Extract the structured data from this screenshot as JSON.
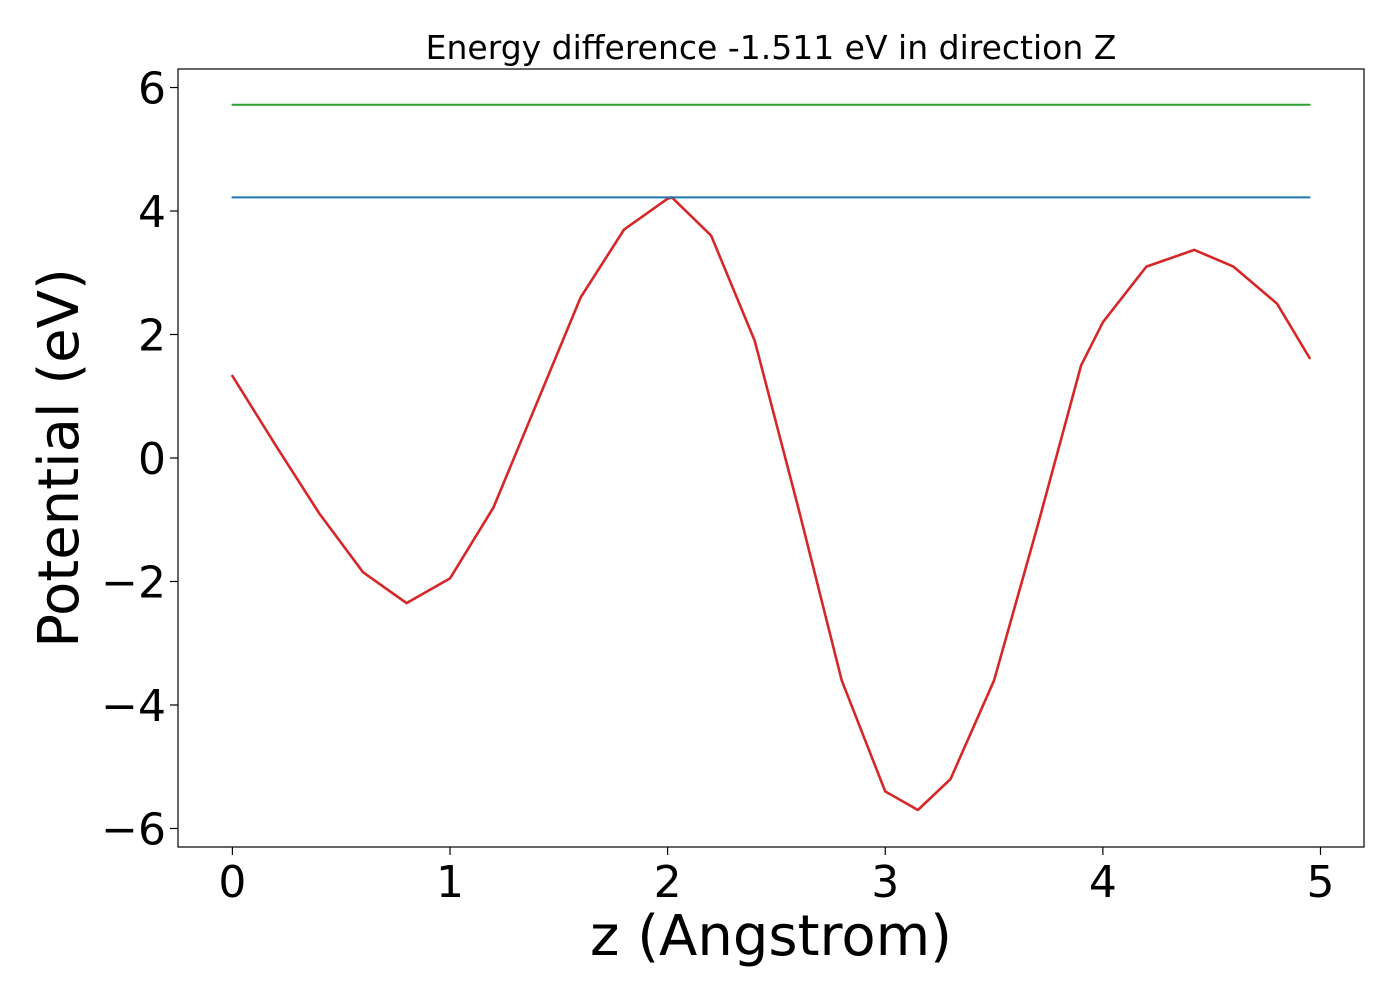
{
  "chart_data": {
    "type": "line",
    "title": "Energy difference -1.511 eV in direction Z",
    "xlabel": "z (Angstrom)",
    "ylabel": "Potential (eV)",
    "xlim": [
      -0.25,
      5.2
    ],
    "ylim": [
      -6.3,
      6.3
    ],
    "xticks": [
      0,
      1,
      2,
      3,
      4,
      5
    ],
    "yticks": [
      -6,
      -4,
      -2,
      0,
      2,
      4,
      6
    ],
    "xtick_labels": [
      "0",
      "1",
      "2",
      "3",
      "4",
      "5"
    ],
    "ytick_labels": [
      "−6",
      "−4",
      "−2",
      "0",
      "2",
      "4",
      "6"
    ],
    "grid": false,
    "series": [
      {
        "color": "#d62728",
        "x": [
          0,
          0.2,
          0.4,
          0.6,
          0.8,
          1.0,
          1.2,
          1.4,
          1.6,
          1.8,
          2.0,
          2.02,
          2.2,
          2.4,
          2.6,
          2.8,
          3.0,
          3.15,
          3.3,
          3.5,
          3.7,
          3.9,
          4.0,
          4.2,
          4.42,
          4.6,
          4.8,
          4.95
        ],
        "y": [
          1.33,
          0.2,
          -0.9,
          -1.85,
          -2.35,
          -1.95,
          -0.8,
          0.9,
          2.6,
          3.7,
          4.2,
          4.22,
          3.6,
          1.9,
          -0.8,
          -3.6,
          -5.4,
          -5.7,
          -5.2,
          -3.6,
          -1.1,
          1.5,
          2.2,
          3.1,
          3.37,
          3.1,
          2.5,
          1.62
        ]
      },
      {
        "color": "#1f77b4",
        "x": [
          0,
          4.95
        ],
        "y": [
          4.22,
          4.22
        ]
      },
      {
        "color": "#2ca02c",
        "x": [
          0,
          4.95
        ],
        "y": [
          5.72,
          5.72
        ]
      }
    ]
  }
}
